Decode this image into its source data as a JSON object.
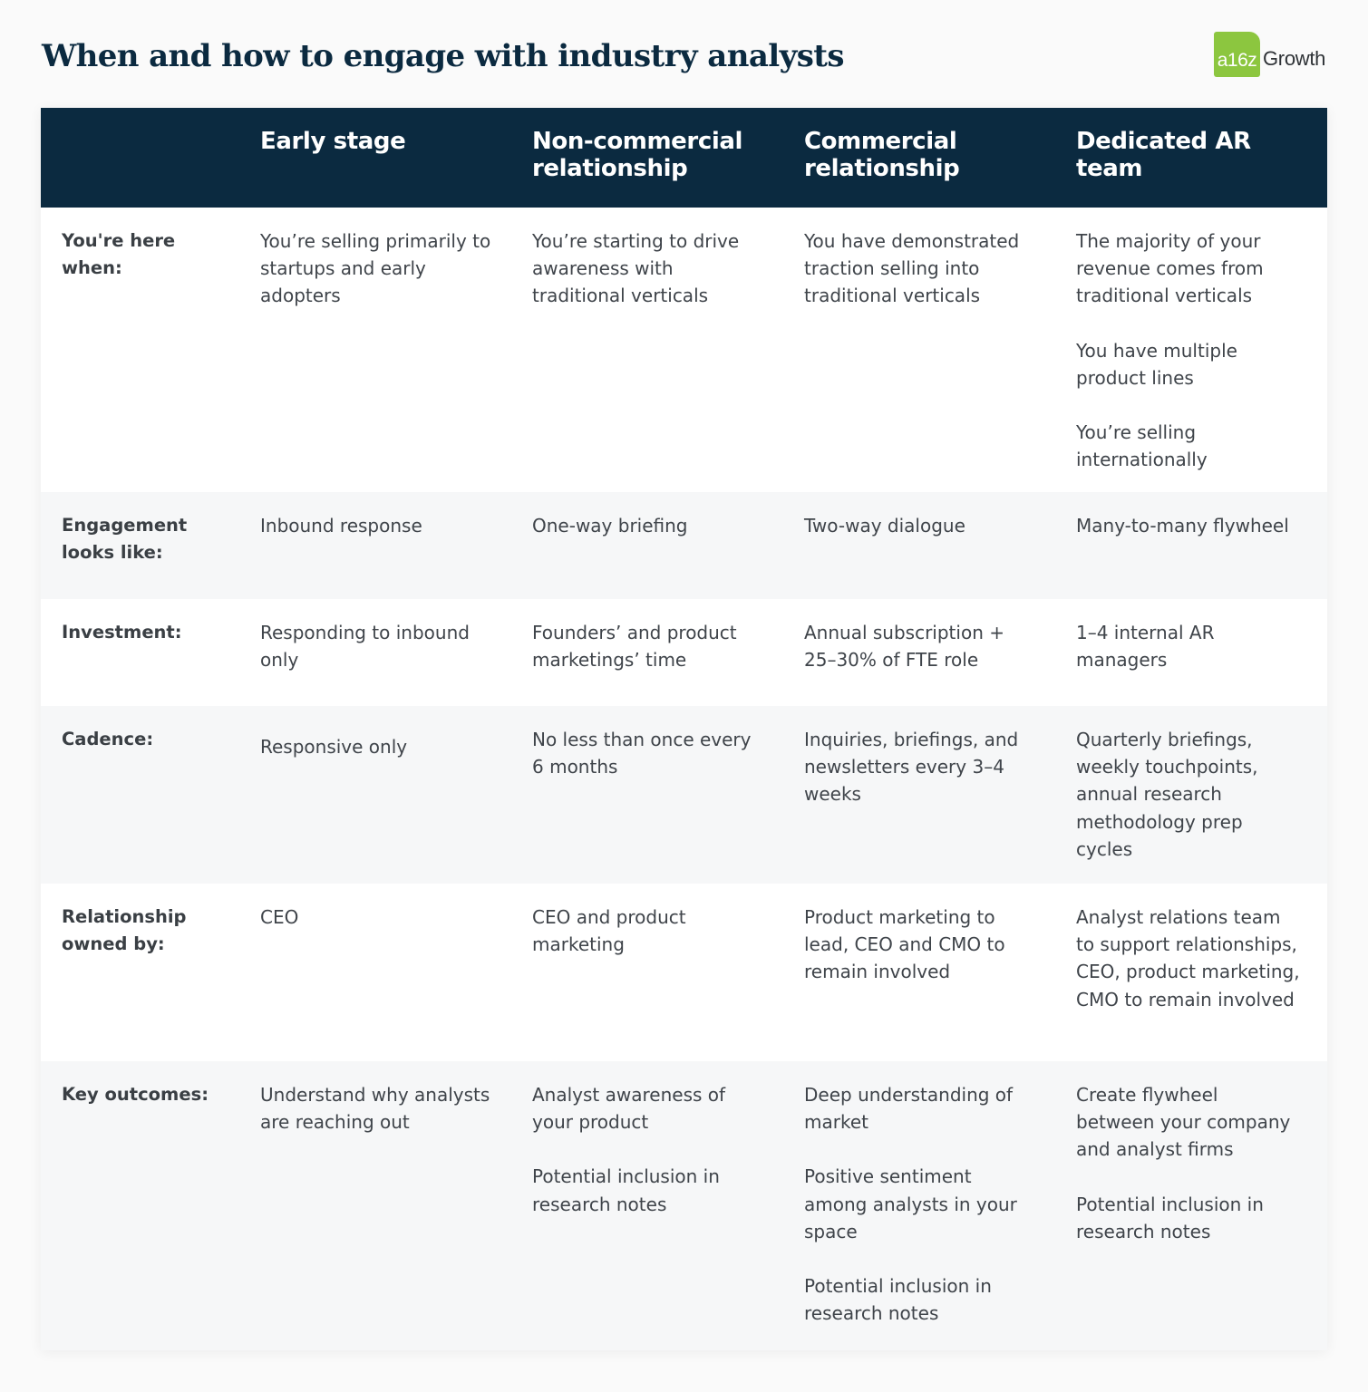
{
  "title": "When and how to engage with industry analysts",
  "logo": {
    "badge": "a16z",
    "word": "Growth",
    "badge_color": "#8cc63f"
  },
  "colors": {
    "header_bg": "#0b2a40",
    "alt_row_bg": "#f6f7f8"
  },
  "columns": [
    "Early stage",
    "Non-commercial relationship",
    "Commercial relationship",
    "Dedicated AR team"
  ],
  "rows": [
    {
      "label": "You're here when:",
      "cells": [
        [
          "You’re selling primarily to startups and early adopters"
        ],
        [
          "You’re starting to drive awareness with traditional verticals"
        ],
        [
          "You have demonstrated traction selling into traditional verticals"
        ],
        [
          "The majority of your revenue comes from traditional verticals",
          "You have multiple product lines",
          "You’re selling internationally"
        ]
      ]
    },
    {
      "label": "Engagement looks like:",
      "cells": [
        [
          "Inbound response"
        ],
        [
          "One-way briefing"
        ],
        [
          "Two-way dialogue"
        ],
        [
          "Many-to-many flywheel"
        ]
      ]
    },
    {
      "label": "Investment:",
      "cells": [
        [
          "Responding to inbound only"
        ],
        [
          "Founders’ and product marketings’ time"
        ],
        [
          "Annual subscription + 25–30% of FTE role"
        ],
        [
          "1–4 internal AR managers"
        ]
      ]
    },
    {
      "label": "Cadence:",
      "cells": [
        [
          "Responsive only"
        ],
        [
          "No less than once every 6 months"
        ],
        [
          "Inquiries, briefings, and newsletters every 3–4 weeks"
        ],
        [
          "Quarterly briefings, weekly touchpoints, annual research methodology prep cycles"
        ]
      ]
    },
    {
      "label": "Relationship owned by:",
      "cells": [
        [
          "CEO"
        ],
        [
          "CEO and product marketing"
        ],
        [
          "Product marketing to lead, CEO and CMO to remain involved"
        ],
        [
          "Analyst relations team to support relationships, CEO, product marketing, CMO to remain involved"
        ]
      ]
    },
    {
      "label": "Key outcomes:",
      "cells": [
        [
          "Understand why analysts are reaching out"
        ],
        [
          "Analyst awareness of your product",
          "Potential inclusion in research notes"
        ],
        [
          "Deep understanding of market",
          "Positive sentiment among analysts in your space",
          "Potential inclusion in research notes"
        ],
        [
          "Create flywheel between your company and analyst firms",
          "Potential inclusion in research notes"
        ]
      ]
    }
  ]
}
